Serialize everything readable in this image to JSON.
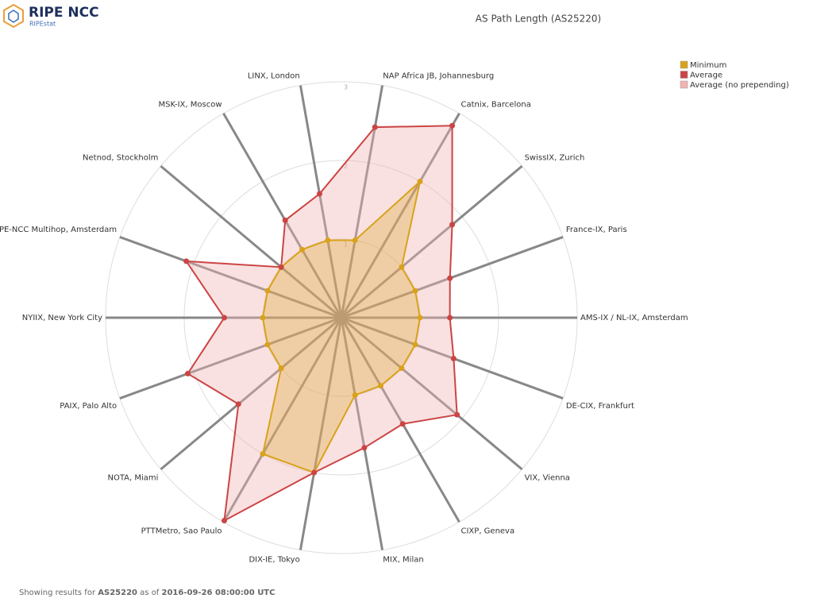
{
  "logo": {
    "name": "RIPE NCC",
    "product": "RIPEstat"
  },
  "footer": {
    "prefix": "Showing results for",
    "asn": "AS25220",
    "mid": "as of",
    "time": "2016-09-26 08:00:00 UTC"
  },
  "chart_data": {
    "type": "radar",
    "title": "AS Path Length (AS25220)",
    "categories": [
      "AMS-IX / NL-IX, Amsterdam",
      "DE-CIX, Frankfurt",
      "VIX, Vienna",
      "CIXP, Geneva",
      "MIX, Milan",
      "DIX-IE, Tokyo",
      "PTTMetro, Sao Paulo",
      "NOTA, Miami",
      "PAIX, Palo Alto",
      "NYIIX, New York City",
      "RIPE-NCC Multihop, Amsterdam",
      "Netnod, Stockholm",
      "MSK-IX, Moscow",
      "LINX, London",
      "NAP Africa JB, Johannesburg",
      "Catnix, Barcelona",
      "SwissIX, Zurich",
      "France-IX, Paris"
    ],
    "series": [
      {
        "name": "Minimum",
        "color": "#d9a21b",
        "values": [
          1,
          1,
          1,
          1,
          1,
          2,
          2,
          1,
          1,
          1,
          1,
          1,
          1,
          1,
          1,
          2,
          1,
          1
        ]
      },
      {
        "name": "Average",
        "color": "#cc4444",
        "values": [
          1.38,
          1.52,
          1.92,
          1.56,
          1.68,
          2.0,
          2.98,
          1.71,
          2.08,
          1.49,
          2.1,
          1.0,
          1.43,
          1.6,
          2.46,
          2.82,
          1.84,
          1.47
        ]
      },
      {
        "name": "Average (no prepending)",
        "color": "#f0b3b3",
        "values": [
          1.38,
          1.52,
          1.92,
          1.56,
          1.68,
          2.0,
          2.98,
          1.71,
          2.08,
          1.49,
          2.1,
          1.0,
          1.43,
          1.6,
          2.46,
          2.82,
          1.84,
          1.47
        ]
      }
    ],
    "rlim": [
      0,
      3
    ],
    "rticks": [
      1,
      2,
      3
    ],
    "legend": "top-right"
  }
}
